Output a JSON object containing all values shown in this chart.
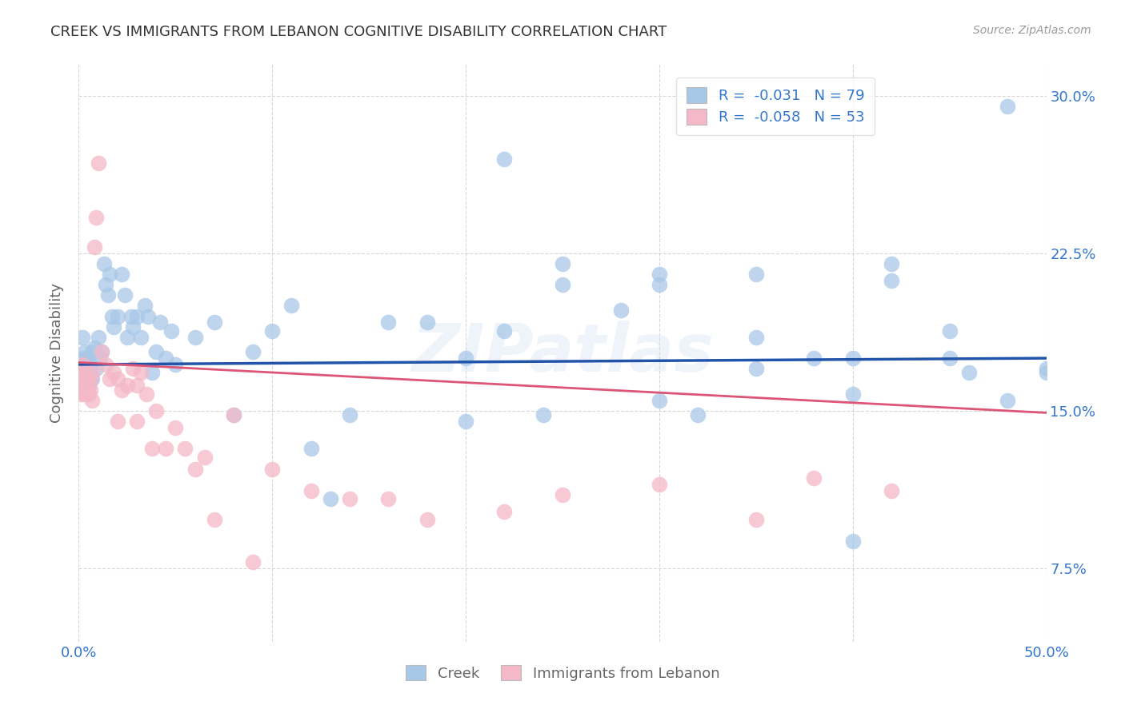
{
  "title": "CREEK VS IMMIGRANTS FROM LEBANON COGNITIVE DISABILITY CORRELATION CHART",
  "source": "Source: ZipAtlas.com",
  "ylabel": "Cognitive Disability",
  "xlim": [
    0.0,
    0.5
  ],
  "ylim": [
    0.04,
    0.315
  ],
  "xticks": [
    0.0,
    0.1,
    0.2,
    0.3,
    0.4,
    0.5
  ],
  "xticklabels": [
    "0.0%",
    "",
    "",
    "",
    "",
    "50.0%"
  ],
  "yticks_right": [
    0.075,
    0.15,
    0.225,
    0.3
  ],
  "ytick_labels_right": [
    "7.5%",
    "15.0%",
    "22.5%",
    "30.0%"
  ],
  "legend1_label": "R =  -0.031   N = 79",
  "legend2_label": "R =  -0.058   N = 53",
  "creek_color": "#a8c8e8",
  "lebanon_color": "#f4b8c8",
  "creek_line_color": "#2255aa",
  "lebanon_line_color": "#dd5577",
  "title_color": "#333333",
  "axis_label_color": "#666666",
  "tick_color": "#3377cc",
  "background_color": "#ffffff",
  "grid_color": "#cccccc",
  "watermark": "ZIPatlas",
  "creek_trend_x": [
    0.0,
    0.5
  ],
  "creek_trend_y": [
    0.172,
    0.175
  ],
  "lebanon_trend_x": [
    0.0,
    0.5
  ],
  "lebanon_trend_y": [
    0.173,
    0.149
  ],
  "creek_x": [
    0.001,
    0.002,
    0.002,
    0.003,
    0.003,
    0.004,
    0.004,
    0.005,
    0.005,
    0.006,
    0.006,
    0.007,
    0.007,
    0.008,
    0.009,
    0.01,
    0.011,
    0.012,
    0.013,
    0.014,
    0.015,
    0.016,
    0.017,
    0.018,
    0.02,
    0.022,
    0.024,
    0.025,
    0.027,
    0.028,
    0.03,
    0.032,
    0.034,
    0.036,
    0.038,
    0.04,
    0.042,
    0.045,
    0.048,
    0.05,
    0.06,
    0.07,
    0.08,
    0.09,
    0.1,
    0.11,
    0.12,
    0.13,
    0.14,
    0.16,
    0.18,
    0.2,
    0.22,
    0.24,
    0.25,
    0.28,
    0.3,
    0.32,
    0.35,
    0.38,
    0.4,
    0.42,
    0.45,
    0.46,
    0.48,
    0.5,
    0.2,
    0.25,
    0.3,
    0.35,
    0.4,
    0.42,
    0.45,
    0.48,
    0.5,
    0.3,
    0.35,
    0.4,
    0.22
  ],
  "creek_y": [
    0.17,
    0.175,
    0.185,
    0.165,
    0.178,
    0.168,
    0.175,
    0.172,
    0.168,
    0.165,
    0.172,
    0.178,
    0.165,
    0.18,
    0.17,
    0.185,
    0.175,
    0.178,
    0.22,
    0.21,
    0.205,
    0.215,
    0.195,
    0.19,
    0.195,
    0.215,
    0.205,
    0.185,
    0.195,
    0.19,
    0.195,
    0.185,
    0.2,
    0.195,
    0.168,
    0.178,
    0.192,
    0.175,
    0.188,
    0.172,
    0.185,
    0.192,
    0.148,
    0.178,
    0.188,
    0.2,
    0.132,
    0.108,
    0.148,
    0.192,
    0.192,
    0.175,
    0.188,
    0.148,
    0.22,
    0.198,
    0.215,
    0.148,
    0.215,
    0.175,
    0.088,
    0.212,
    0.188,
    0.168,
    0.295,
    0.168,
    0.145,
    0.21,
    0.21,
    0.185,
    0.175,
    0.22,
    0.175,
    0.155,
    0.17,
    0.155,
    0.17,
    0.158,
    0.27
  ],
  "lebanon_x": [
    0.0,
    0.0,
    0.001,
    0.001,
    0.002,
    0.002,
    0.003,
    0.003,
    0.004,
    0.004,
    0.005,
    0.005,
    0.006,
    0.006,
    0.007,
    0.007,
    0.008,
    0.009,
    0.01,
    0.012,
    0.014,
    0.016,
    0.018,
    0.02,
    0.022,
    0.025,
    0.028,
    0.03,
    0.032,
    0.035,
    0.038,
    0.04,
    0.045,
    0.05,
    0.055,
    0.06,
    0.065,
    0.07,
    0.08,
    0.09,
    0.1,
    0.12,
    0.14,
    0.16,
    0.18,
    0.22,
    0.25,
    0.3,
    0.35,
    0.38,
    0.42,
    0.02,
    0.03
  ],
  "lebanon_y": [
    0.168,
    0.162,
    0.158,
    0.168,
    0.162,
    0.172,
    0.158,
    0.165,
    0.162,
    0.168,
    0.162,
    0.158,
    0.16,
    0.165,
    0.168,
    0.155,
    0.228,
    0.242,
    0.268,
    0.178,
    0.172,
    0.165,
    0.168,
    0.165,
    0.16,
    0.162,
    0.17,
    0.162,
    0.168,
    0.158,
    0.132,
    0.15,
    0.132,
    0.142,
    0.132,
    0.122,
    0.128,
    0.098,
    0.148,
    0.078,
    0.122,
    0.112,
    0.108,
    0.108,
    0.098,
    0.102,
    0.11,
    0.115,
    0.098,
    0.118,
    0.112,
    0.145,
    0.145
  ]
}
